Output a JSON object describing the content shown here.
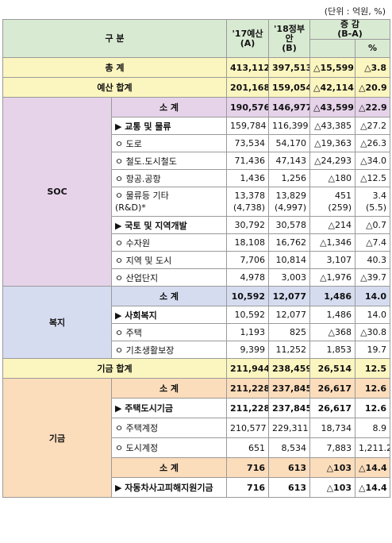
{
  "unit_note": "(단위 : 억원, %)",
  "headers": {
    "category": "구 분",
    "col_a_line1": "'17예산",
    "col_a_line2": "(A)",
    "col_b_line1": "'18정부",
    "col_b_line2": "안",
    "col_b_line3": "(B)",
    "change_line1": "증 감",
    "change_line2": "(B-A)",
    "pct": "%"
  },
  "rows": [
    {
      "label": "총 계",
      "a": "413,112",
      "b": "397,513",
      "diff": "△15,599",
      "pct": "△3.8"
    },
    {
      "label": "예산 합계",
      "a": "201,168",
      "b": "159,054",
      "diff": "△42,114",
      "pct": "△20.9"
    },
    {
      "group": "SOC",
      "label": "소 계",
      "a": "190,576",
      "b": "146,977",
      "diff": "△43,599",
      "pct": "△22.9"
    },
    {
      "label": "▶ 교통 및 물류",
      "a": "159,784",
      "b": "116,399",
      "diff": "△43,385",
      "pct": "△27.2"
    },
    {
      "label": "ㅇ 도로",
      "a": "73,534",
      "b": "54,170",
      "diff": "△19,363",
      "pct": "△26.3"
    },
    {
      "label": "ㅇ 철도.도시철도",
      "a": "71,436",
      "b": "47,143",
      "diff": "△24,293",
      "pct": "△34.0"
    },
    {
      "label": "ㅇ 항공.공항",
      "a": "1,436",
      "b": "1,256",
      "diff": "△180",
      "pct": "△12.5"
    },
    {
      "label": "ㅇ 물류등 기타",
      "label2": "(R&D)*",
      "a": "13,378",
      "a2": "(4,738)",
      "b": "13,829",
      "b2": "(4,997)",
      "diff": "451",
      "diff2": "(259)",
      "pct": "3.4",
      "pct2": "(5.5)"
    },
    {
      "label": "▶ 국토 및 지역개발",
      "a": "30,792",
      "b": "30,578",
      "diff": "△214",
      "pct": "△0.7"
    },
    {
      "label": "ㅇ 수자원",
      "a": "18,108",
      "b": "16,762",
      "diff": "△1,346",
      "pct": "△7.4"
    },
    {
      "label": "ㅇ 지역 및 도시",
      "a": "7,706",
      "b": "10,814",
      "diff": "3,107",
      "pct": "40.3"
    },
    {
      "label": "ㅇ 산업단지",
      "a": "4,978",
      "b": "3,003",
      "diff": "△1,976",
      "pct": "△39.7"
    },
    {
      "group": "복지",
      "label": "소 계",
      "a": "10,592",
      "b": "12,077",
      "diff": "1,486",
      "pct": "14.0"
    },
    {
      "label": "▶ 사회복지",
      "a": "10,592",
      "b": "12,077",
      "diff": "1,486",
      "pct": "14.0"
    },
    {
      "label": "ㅇ 주택",
      "a": "1,193",
      "b": "825",
      "diff": "△368",
      "pct": "△30.8"
    },
    {
      "label": "ㅇ 기초생활보장",
      "a": "9,399",
      "b": "11,252",
      "diff": "1,853",
      "pct": "19.7"
    },
    {
      "label": "기금 합계",
      "a": "211,944",
      "b": "238,459",
      "diff": "26,514",
      "pct": "12.5"
    },
    {
      "group": "기금",
      "label": "소 계",
      "a": "211,228",
      "b": "237,845",
      "diff": "26,617",
      "pct": "12.6"
    },
    {
      "label": "▶ 주택도시기금",
      "a": "211,228",
      "b": "237,845",
      "diff": "26,617",
      "pct": "12.6"
    },
    {
      "label": "ㅇ 주택계정",
      "a": "210,577",
      "b": "229,311",
      "diff": "18,734",
      "pct": "8.9"
    },
    {
      "label": "ㅇ 도시계정",
      "a": "651",
      "b": "8,534",
      "diff": "7,883",
      "pct": "1,211.2"
    },
    {
      "label": "소 계",
      "a": "716",
      "b": "613",
      "diff": "△103",
      "pct": "△14.4"
    },
    {
      "label": "▶ 자동차사고피해지원기금",
      "a": "716",
      "b": "613",
      "diff": "△103",
      "pct": "△14.4"
    }
  ],
  "colors": {
    "header": "#d9ead3",
    "total": "#fbf5bf",
    "soc": "#e6d3ea",
    "welfare": "#d6dcf0",
    "fund": "#fbdcbb"
  }
}
